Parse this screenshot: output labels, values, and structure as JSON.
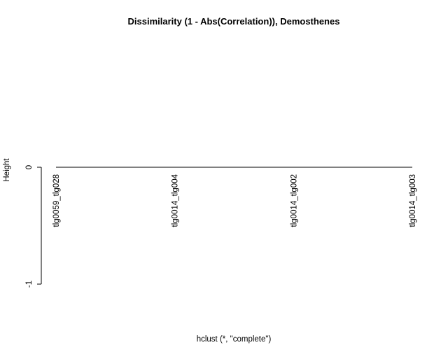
{
  "chart_data": {
    "type": "dendrogram",
    "title": "Dissimilarity (1 - Abs(Correlation)), Demosthenes",
    "xlabel": "hclust (*, \"complete\")",
    "ylabel": "Height",
    "ylim": [
      -1,
      0
    ],
    "yticks": [
      {
        "value": 0,
        "label": "0"
      },
      {
        "value": -1,
        "label": "-1"
      }
    ],
    "leaves": [
      "tlg0059_tlg028",
      "tlg0014_tlg004",
      "tlg0014_tlg002",
      "tlg0014_tlg003"
    ],
    "merges": [
      {
        "left": 2,
        "right": 3,
        "height": 0
      },
      {
        "left": 1,
        "right": 2,
        "height": 0
      },
      {
        "left": 0,
        "right": 1,
        "height": 0
      }
    ],
    "grid": false,
    "legend": "none"
  }
}
